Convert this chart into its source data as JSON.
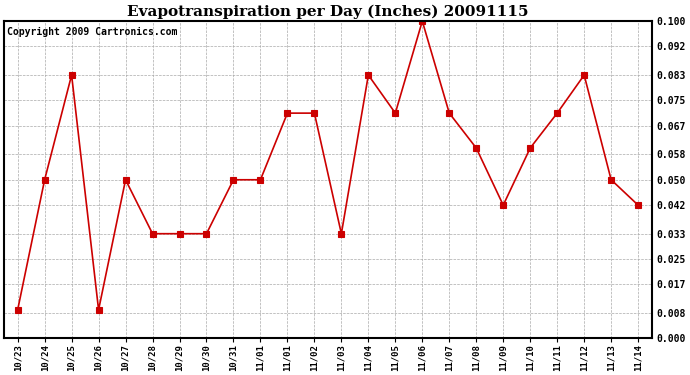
{
  "title": "Evapotranspiration per Day (Inches) 20091115",
  "copyright": "Copyright 2009 Cartronics.com",
  "x_labels": [
    "10/23",
    "10/24",
    "10/25",
    "10/26",
    "10/27",
    "10/28",
    "10/29",
    "10/30",
    "10/31",
    "11/01",
    "11/01",
    "11/02",
    "11/03",
    "11/04",
    "11/05",
    "11/06",
    "11/07",
    "11/08",
    "11/09",
    "11/10",
    "11/11",
    "11/12",
    "11/13",
    "11/14"
  ],
  "y_values": [
    0.009,
    0.05,
    0.083,
    0.009,
    0.05,
    0.033,
    0.033,
    0.033,
    0.05,
    0.05,
    0.071,
    0.071,
    0.033,
    0.083,
    0.071,
    0.1,
    0.071,
    0.06,
    0.042,
    0.06,
    0.071,
    0.083,
    0.05,
    0.042
  ],
  "line_color": "#cc0000",
  "marker": "s",
  "marker_size": 4,
  "bg_color": "#ffffff",
  "plot_bg_color": "#ffffff",
  "grid_color": "#aaaaaa",
  "ylim": [
    0.0,
    0.1
  ],
  "yticks": [
    0.0,
    0.008,
    0.017,
    0.025,
    0.033,
    0.042,
    0.05,
    0.058,
    0.067,
    0.075,
    0.083,
    0.092,
    0.1
  ],
  "title_fontsize": 11,
  "copyright_fontsize": 7
}
